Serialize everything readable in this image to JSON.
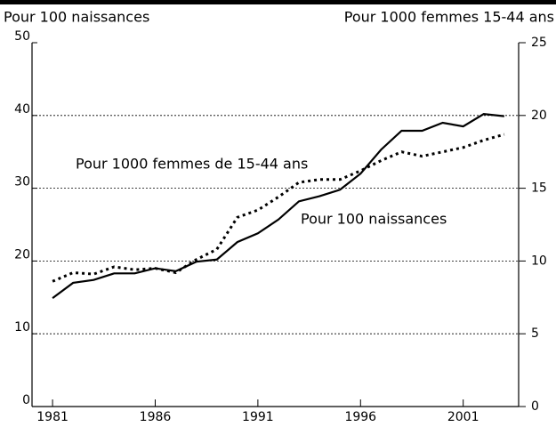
{
  "chart_data": {
    "type": "line",
    "ylabel": "Pour 100 naissances",
    "y2label": "Pour 1000 femmes 15-44 ans",
    "x": [
      1981,
      1982,
      1983,
      1984,
      1985,
      1986,
      1987,
      1988,
      1989,
      1990,
      1991,
      1992,
      1993,
      1994,
      1995,
      1996,
      1997,
      1998,
      1999,
      2000,
      2001,
      2002,
      2003
    ],
    "series": [
      {
        "name": "Pour 100 naissances",
        "color": "#000000",
        "style": "solid",
        "values": [
          14.9,
          17.0,
          17.4,
          18.3,
          18.3,
          19.0,
          18.6,
          19.9,
          20.2,
          22.6,
          23.8,
          25.7,
          28.2,
          28.9,
          29.8,
          32.0,
          35.3,
          37.9,
          37.9,
          39.0,
          38.5,
          40.2,
          39.9
        ]
      },
      {
        "name": "Pour 1000 femmes de 15-44 ans",
        "color": "#000000",
        "style": "dotted",
        "axis": "y2",
        "values": [
          8.6,
          9.2,
          9.1,
          9.6,
          9.4,
          9.5,
          9.2,
          10.1,
          10.8,
          13.0,
          13.5,
          14.4,
          15.4,
          15.6,
          15.6,
          16.2,
          16.9,
          17.5,
          17.2,
          17.5,
          17.8,
          18.3,
          18.7
        ]
      }
    ],
    "xlim": [
      1980,
      2003.7
    ],
    "xticks": [
      1981,
      1986,
      1991,
      1996,
      2001
    ],
    "ylim": [
      0,
      50
    ],
    "yticks": [
      0,
      10,
      20,
      30,
      40,
      50
    ],
    "y2lim": [
      0,
      25
    ],
    "y2ticks": [
      0,
      5,
      10,
      15,
      20,
      25
    ],
    "grid": true
  }
}
